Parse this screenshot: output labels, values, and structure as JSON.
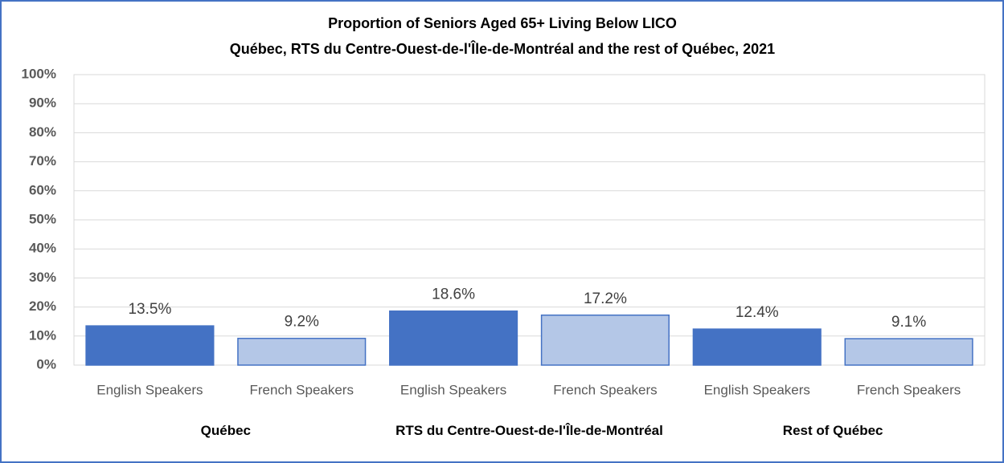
{
  "chart_data": {
    "type": "bar",
    "title": "Proportion  of Seniors Aged 65+ Living Below LICO",
    "subtitle": "Québec, RTS du Centre-Ouest-de-l'Île-de-Montréal and the rest of Québec, 2021",
    "categories": [
      "Québec",
      "RTS du Centre-Ouest-de-l'Île-de-Montréal",
      "Rest of Québec"
    ],
    "series": [
      {
        "name": "English Speakers",
        "color": "#4472c4",
        "values": [
          13.5,
          18.6,
          12.4
        ],
        "value_labels": [
          "13.5%",
          "18.6%",
          "12.4%"
        ]
      },
      {
        "name": "French Speakers",
        "color": "#b4c7e7",
        "values": [
          9.2,
          17.2,
          9.1
        ],
        "value_labels": [
          "9.2%",
          "17.2%",
          "9.1%"
        ]
      }
    ],
    "ylim": [
      0,
      100
    ],
    "yticks": [
      {
        "value": 0,
        "label": "0%"
      },
      {
        "value": 10,
        "label": "10%"
      },
      {
        "value": 20,
        "label": "20%"
      },
      {
        "value": 30,
        "label": "30%"
      },
      {
        "value": 40,
        "label": "40%"
      },
      {
        "value": 50,
        "label": "50%"
      },
      {
        "value": 60,
        "label": "60%"
      },
      {
        "value": 70,
        "label": "70%"
      },
      {
        "value": 80,
        "label": "80%"
      },
      {
        "value": 90,
        "label": "90%"
      },
      {
        "value": 100,
        "label": "100%"
      }
    ],
    "grid": true
  }
}
